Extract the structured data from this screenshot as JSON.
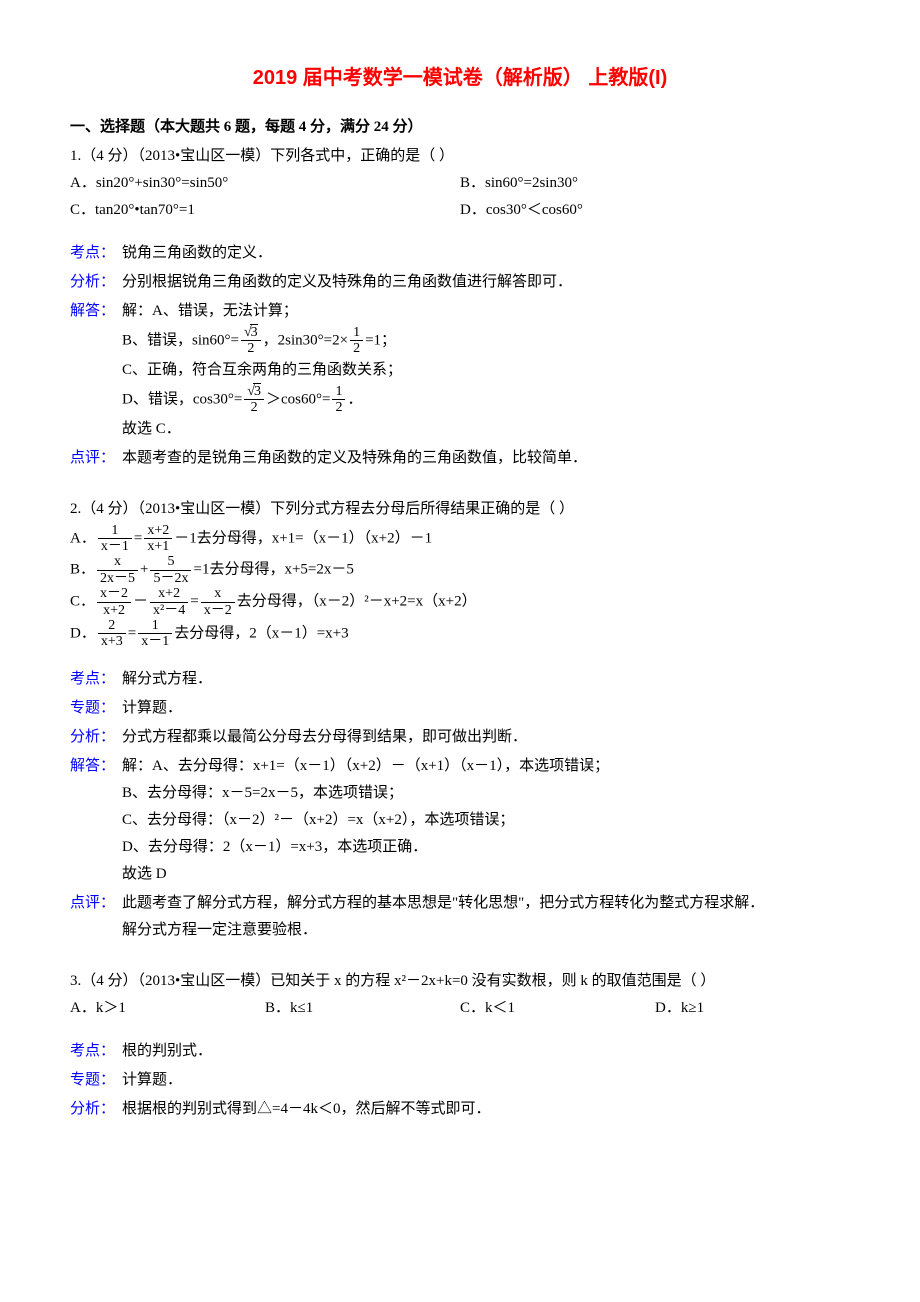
{
  "title": "2019 届中考数学一模试卷（解析版）  上教版(I)",
  "section1": "一、选择题（本大题共 6 题，每题 4 分，满分 24 分）",
  "q1": {
    "stem": "1.（4 分）（2013•宝山区一模）下列各式中，正确的是（    ）",
    "A": "A．sin20°+sin30°=sin50°",
    "B": "B．sin60°=2sin30°",
    "C": "C．tan20°•tan70°=1",
    "D": "D．cos30°＜cos60°",
    "kaodian_lbl": "考点：",
    "kaodian": "锐角三角函数的定义．",
    "fenxi_lbl": "分析：",
    "fenxi": "分别根据锐角三角函数的定义及特殊角的三角函数值进行解答即可．",
    "jieda_lbl": "解答：",
    "jieda_a": "解：A、错误，无法计算；",
    "jieda_b_pre": "B、错误，sin60°=",
    "jieda_b_mid": "，2sin30°=2×",
    "jieda_b_post": "=1；",
    "jieda_c": "C、正确，符合互余两角的三角函数关系；",
    "jieda_d_pre": "D、错误，cos30°=",
    "jieda_d_mid": "＞cos60°=",
    "jieda_d_post": "．",
    "jieda_final": "故选 C．",
    "dianping_lbl": "点评：",
    "dianping": "本题考查的是锐角三角函数的定义及特殊角的三角函数值，比较简单．",
    "sqrt3": "3",
    "den2": "2",
    "num1": "1"
  },
  "q2": {
    "stem": "2.（4 分）（2013•宝山区一模）下列分式方程去分母后所得结果正确的是（    ）",
    "A_pre": "A．",
    "A_post": "－1去分母得，x+1=（x－1）（x+2）－1",
    "A_f1n": "1",
    "A_f1d": "x－1",
    "A_eq": "=",
    "A_f2n": "x+2",
    "A_f2d": "x+1",
    "B_pre": "B．",
    "B_post": "=1去分母得，x+5=2x－5",
    "B_f1n": "x",
    "B_f1d": "2x－5",
    "B_plus": "+",
    "B_f2n": "5",
    "B_f2d": "5－2x",
    "C_pre": "C．",
    "C_post": "去分母得，（x－2）²－x+2=x（x+2）",
    "C_f1n": "x－2",
    "C_f1d": "x+2",
    "C_minus": "－",
    "C_f2n": "x+2",
    "C_f2d": "x²－4",
    "C_eq": "=",
    "C_f3n": "x",
    "C_f3d": "x－2",
    "D_pre": "D．",
    "D_post": "去分母得，2（x－1）=x+3",
    "D_f1n": "2",
    "D_f1d": "x+3",
    "D_eq": "=",
    "D_f2n": "1",
    "D_f2d": "x－1",
    "kaodian_lbl": "考点：",
    "kaodian": "解分式方程．",
    "zhuanti_lbl": "专题：",
    "zhuanti": "计算题．",
    "fenxi_lbl": "分析：",
    "fenxi": "分式方程都乘以最简公分母去分母得到结果，即可做出判断．",
    "jieda_lbl": "解答：",
    "jieda_a": "解：A、去分母得：x+1=（x－1）（x+2）－（x+1）（x－1），本选项错误；",
    "jieda_b": "B、去分母得：x－5=2x－5，本选项错误；",
    "jieda_c": "C、去分母得：（x－2）²－（x+2）=x（x+2），本选项错误；",
    "jieda_d": "D、去分母得：2（x－1）=x+3，本选项正确．",
    "jieda_final": "故选 D",
    "dianping_lbl": "点评：",
    "dianping1": "此题考查了解分式方程，解分式方程的基本思想是\"转化思想\"，把分式方程转化为整式方程求解．",
    "dianping2": "解分式方程一定注意要验根．"
  },
  "q3": {
    "stem": "3.（4 分）（2013•宝山区一模）已知关于 x 的方程 x²－2x+k=0 没有实数根，则 k 的取值范围是（    ）",
    "A": "A．k＞1",
    "B": "B．k≤1",
    "C": "C．k＜1",
    "D": "D．k≥1",
    "kaodian_lbl": "考点：",
    "kaodian": "根的判别式．",
    "zhuanti_lbl": "专题：",
    "zhuanti": "计算题．",
    "fenxi_lbl": "分析：",
    "fenxi": "根据根的判别式得到△=4－4k＜0，然后解不等式即可．"
  }
}
